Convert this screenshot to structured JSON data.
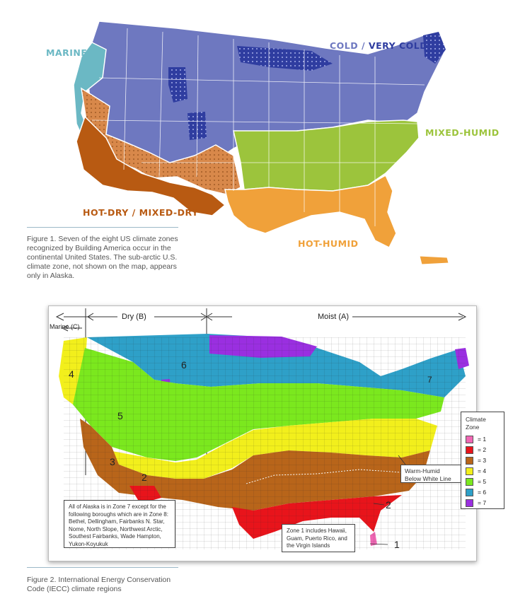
{
  "figure1": {
    "labels": {
      "marine": "MARINE",
      "cold": "COLD",
      "separator": " / ",
      "very_cold": "VERY COLD",
      "mixed_humid": "MIXED-HUMID",
      "hot_dry_mixed_dry": "HOT-DRY / MIXED-DRY",
      "hot_humid": "HOT-HUMID"
    },
    "colors": {
      "marine": "#6bb8c4",
      "cold": "#6e78c0",
      "very_cold": "#2f3da0",
      "mixed_humid": "#9cc43c",
      "hot_dry": "#b85a12",
      "mixed_dry": "#d8884a",
      "hot_humid": "#f0a13a"
    },
    "caption": "Figure 1. Seven of the eight US climate zones recognized by Building America occur in the continental United States. The sub-arctic U.S. climate zone, not shown on the map, appears only in Alaska."
  },
  "figure2": {
    "moisture_regimes": {
      "dry": "Dry (B)",
      "moist": "Moist (A)",
      "marine": "Marine (C)"
    },
    "zone_numbers_on_map": [
      "1",
      "2",
      "3",
      "4",
      "5",
      "6",
      "7"
    ],
    "legend": {
      "title": "Climate Zone",
      "items": [
        {
          "label": "= 1",
          "color": "#f067b4"
        },
        {
          "label": "= 2",
          "color": "#e8141b"
        },
        {
          "label": "= 3",
          "color": "#b8651a"
        },
        {
          "label": "= 4",
          "color": "#f2ef1c"
        },
        {
          "label": "= 5",
          "color": "#7be81e"
        },
        {
          "label": "= 6",
          "color": "#2ea0c8"
        },
        {
          "label": "= 7",
          "color": "#9a2fe0"
        }
      ]
    },
    "warm_humid_note": "Warm-Humid Below White Line",
    "alaska_note": "All of Alaska is in Zone 7 except for the following boroughs which are in Zone 8: Bethel, Dellingham, Fairbanks N. Star, Nome, North Slope, Northwest Arctic, Southest Fairbanks, Wade Hampton, Yukon-Koyukuk",
    "zone1_note": "Zone 1 includes Hawaii, Guam, Puerto Rico, and the Virgin Islands",
    "caption": "Figure 2. International Energy Conservation Code (IECC) climate regions"
  }
}
